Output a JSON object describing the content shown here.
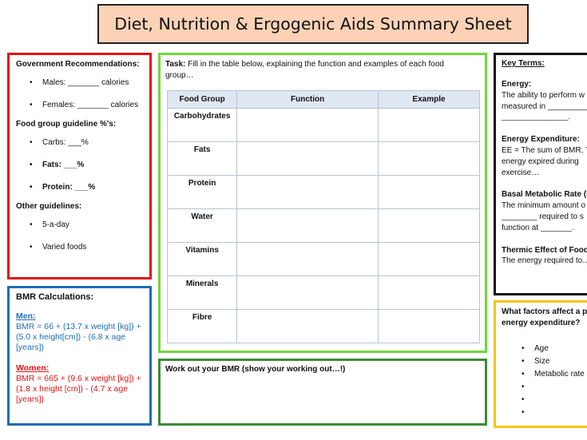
{
  "title": "Diet, Nutrition & Ergogenic Aids Summary Sheet",
  "gov": {
    "heading": "Government Recommendations:",
    "calorie_items": [
      "Males: _______ calories",
      "Females: _______ calories"
    ],
    "food_group_heading": "Food group guideline %'s:",
    "food_group_items": [
      "Carbs: ___%",
      "Fats: ___%",
      "Protein: ___%"
    ],
    "other_heading": "Other guidelines:",
    "other_items": [
      "5-a-day",
      "Varied foods"
    ]
  },
  "bmr": {
    "heading": "BMR Calculations:",
    "men_label": "Men:",
    "men_formula": "BMR = 66 + (13.7 x weight [kg]) + (5.0 x height[cm]) - (6.8 x age [years])",
    "women_label": "Women:",
    "women_formula": "BMR = 665 + (9.6 x weight [kg]) + (1.8 x height [cm]) - (4.7 x age [years])",
    "men_color": "#1c6fb5",
    "women_color": "#e11414"
  },
  "task": {
    "label": "Task:",
    "text": " Fill in the table below, explaining the function and examples of each food group…",
    "table_headers": [
      "Food Group",
      "Function",
      "Example"
    ],
    "rows": [
      "Carbohydrates",
      "Fats",
      "Protein",
      "Water",
      "Vitamins",
      "Minerals",
      "Fibre"
    ]
  },
  "work": {
    "text": "Work out your BMR (show your working out…!)"
  },
  "terms": {
    "heading": "Key Terms:",
    "items": [
      {
        "title": "Energy:",
        "lines": [
          "The ability to perform w",
          "measured in __________",
          "_______________."
        ]
      },
      {
        "title": "Energy Expenditure:",
        "lines": [
          "EE = The sum of BMR, T",
          "energy expired during",
          "exercise…"
        ]
      },
      {
        "title": "Basal Metabolic Rate (B",
        "lines": [
          "The minimum amount o",
          "________ required to s",
          "function at _______."
        ]
      },
      {
        "title": "Thermic Effect of Food",
        "lines": [
          "The energy required to…"
        ]
      }
    ]
  },
  "factors": {
    "heading_line1": "What factors affect a p",
    "heading_line2": "energy expenditure?",
    "items": [
      "Age",
      "Size",
      "Metabolic rate",
      "",
      "",
      ""
    ]
  },
  "colors": {
    "title_bg": "#fbd2b6",
    "gov_border": "#e11414",
    "bmr_border": "#1c6fb5",
    "task_border": "#72d63c",
    "work_border": "#3d8a3a",
    "factors_border": "#f5c518",
    "table_header_bg": "#dfe7f3"
  }
}
